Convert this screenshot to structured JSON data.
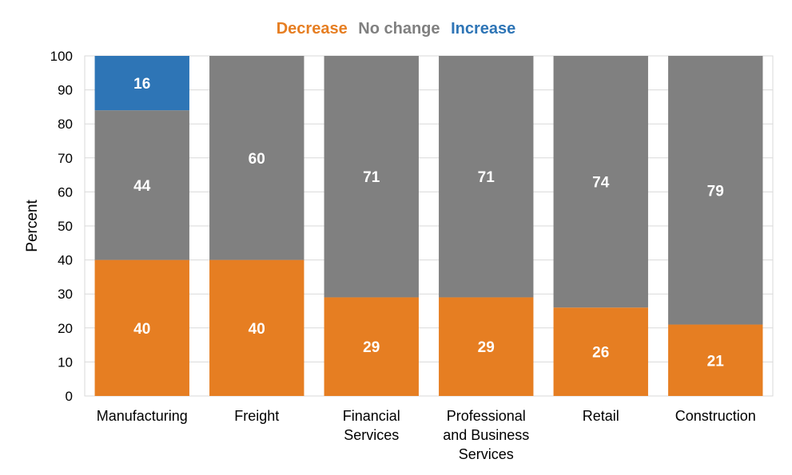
{
  "chart_data": {
    "type": "bar",
    "stacked": true,
    "categories": [
      "Manufacturing",
      "Freight",
      "Financial Services",
      "Professional and Business Services",
      "Retail",
      "Construction"
    ],
    "category_lines": [
      [
        "Manufacturing"
      ],
      [
        "Freight"
      ],
      [
        "Financial",
        "Services"
      ],
      [
        "Professional",
        "and Business",
        "Services"
      ],
      [
        "Retail"
      ],
      [
        "Construction"
      ]
    ],
    "series": [
      {
        "name": "Decrease",
        "color": "#E67E22",
        "values": [
          40,
          40,
          29,
          29,
          26,
          21
        ],
        "labels": [
          "40",
          "40",
          "29",
          "29",
          "26",
          "21"
        ]
      },
      {
        "name": "No change",
        "color": "#808080",
        "values": [
          44,
          60,
          71,
          71,
          74,
          79
        ],
        "labels": [
          "44",
          "60",
          "71",
          "71",
          "74",
          "79"
        ]
      },
      {
        "name": "Increase",
        "color": "#2E75B6",
        "values": [
          16,
          0,
          0,
          0,
          0,
          0
        ],
        "labels": [
          "16",
          "",
          "",
          "",
          "",
          ""
        ]
      }
    ],
    "xlabel": "",
    "ylabel": "Percent",
    "ylim": [
      0,
      100
    ],
    "yticks": [
      0,
      10,
      20,
      30,
      40,
      50,
      60,
      70,
      80,
      90,
      100
    ],
    "grid": true,
    "legend_position": "top-center"
  }
}
